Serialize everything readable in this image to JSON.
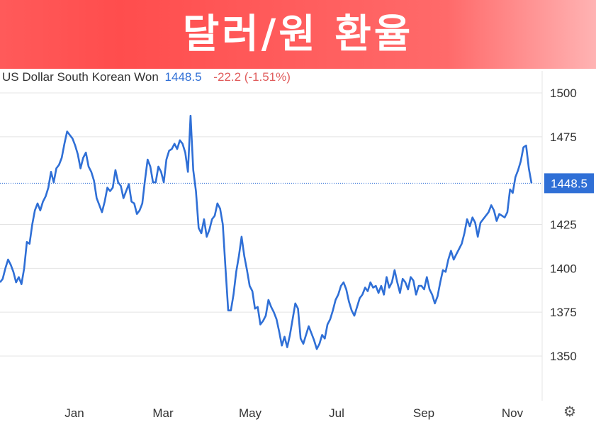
{
  "banner": {
    "title": "달러/원 환율"
  },
  "header": {
    "name": "US Dollar South Korean Won",
    "price": "1448.5",
    "change": "-22.2 (-1.51%)"
  },
  "current_label": "1448.5",
  "chart_data": {
    "type": "line",
    "ylim": [
      1325,
      1510
    ],
    "y_ticks": [
      "1500",
      "1475",
      "1425",
      "1400",
      "1375",
      "1350"
    ],
    "x_ticks": [
      "Jan",
      "Mar",
      "May",
      "Jul",
      "Sep",
      "Nov"
    ],
    "grid": true,
    "current_value": 1448.5,
    "line_color": "#2f6fd6",
    "series": [
      {
        "values": [
          1392,
          1394,
          1400,
          1405,
          1402,
          1398,
          1392,
          1395,
          1391,
          1400,
          1415,
          1414,
          1425,
          1433,
          1437,
          1433,
          1438,
          1441,
          1446,
          1455,
          1449,
          1457,
          1459,
          1463,
          1471,
          1478,
          1476,
          1474,
          1470,
          1465,
          1457,
          1463,
          1466,
          1458,
          1455,
          1450,
          1440,
          1436,
          1432,
          1438,
          1446,
          1444,
          1446,
          1456,
          1449,
          1447,
          1440,
          1444,
          1448,
          1438,
          1437,
          1431,
          1433,
          1437,
          1450,
          1462,
          1458,
          1449,
          1449,
          1458,
          1455,
          1449,
          1462,
          1467,
          1468,
          1471,
          1468,
          1473,
          1471,
          1466,
          1455,
          1487,
          1456,
          1444,
          1423,
          1420,
          1428,
          1418,
          1422,
          1428,
          1430,
          1437,
          1434,
          1425,
          1400,
          1376,
          1376,
          1385,
          1398,
          1407,
          1418,
          1407,
          1399,
          1390,
          1387,
          1377,
          1378,
          1368,
          1370,
          1373,
          1382,
          1378,
          1375,
          1371,
          1364,
          1356,
          1361,
          1355,
          1362,
          1371,
          1380,
          1377,
          1360,
          1357,
          1362,
          1367,
          1363,
          1359,
          1354,
          1357,
          1362,
          1360,
          1368,
          1371,
          1376,
          1382,
          1385,
          1390,
          1392,
          1388,
          1381,
          1376,
          1373,
          1378,
          1383,
          1385,
          1389,
          1387,
          1392,
          1389,
          1390,
          1386,
          1390,
          1385,
          1395,
          1389,
          1392,
          1399,
          1392,
          1386,
          1394,
          1392,
          1388,
          1395,
          1393,
          1385,
          1390,
          1390,
          1388,
          1395,
          1388,
          1385,
          1380,
          1384,
          1392,
          1399,
          1398,
          1405,
          1410,
          1405,
          1408,
          1411,
          1414,
          1420,
          1428,
          1424,
          1429,
          1426,
          1418,
          1426,
          1428,
          1430,
          1432,
          1436,
          1433,
          1427,
          1431,
          1430,
          1429,
          1432,
          1445,
          1443,
          1452,
          1456,
          1461,
          1469,
          1470,
          1457,
          1448.5
        ]
      }
    ]
  }
}
